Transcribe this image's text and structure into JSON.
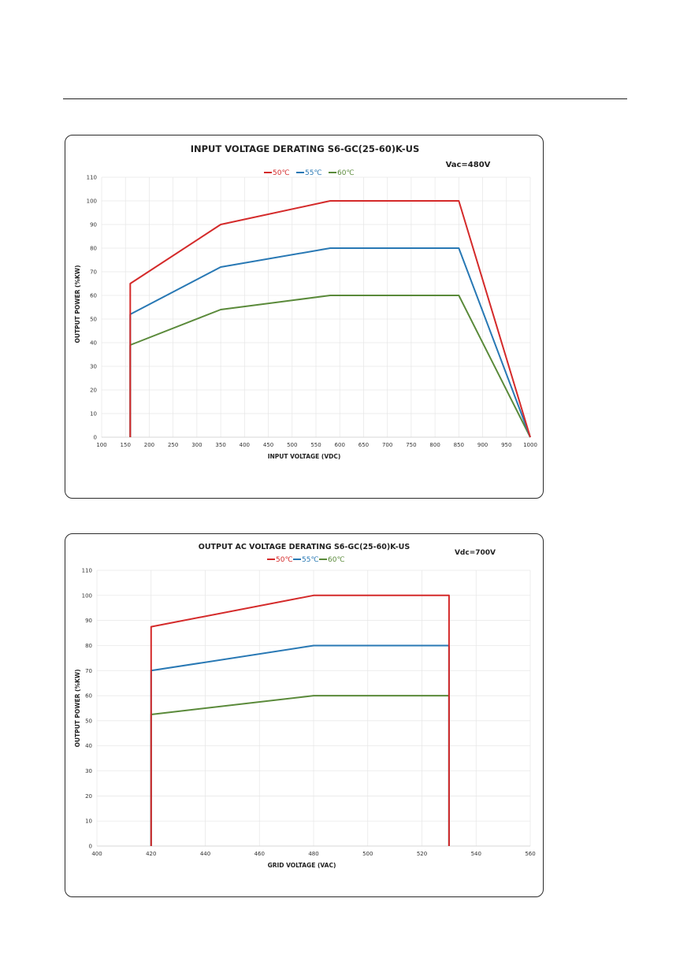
{
  "chart_data": [
    {
      "type": "line",
      "title": "INPUT VOLTAGE DERATING S6-GC(25-60)K-US",
      "annotation": "Vac=480V",
      "xlabel": "INPUT VOLTAGE (VDC)",
      "ylabel": "OUTPUT POWER (%KW)",
      "xlim": [
        100,
        1000
      ],
      "ylim": [
        0,
        110
      ],
      "xticks": [
        "100",
        "150",
        "200",
        "250",
        "300",
        "350",
        "400",
        "450",
        "500",
        "550",
        "600",
        "650",
        "700",
        "750",
        "800",
        "850",
        "900",
        "950",
        "1000"
      ],
      "yticks": [
        "0",
        "10",
        "20",
        "30",
        "40",
        "50",
        "60",
        "70",
        "80",
        "90",
        "100",
        "110"
      ],
      "grid": true,
      "legend_position": "top-center",
      "series": [
        {
          "name": "50℃",
          "color": "#d42a2a",
          "x": [
            160,
            160,
            350,
            580,
            850,
            1000
          ],
          "y": [
            0,
            65,
            90,
            100,
            100,
            0
          ]
        },
        {
          "name": "55℃",
          "color": "#2878b4",
          "x": [
            160,
            160,
            350,
            580,
            850,
            1000
          ],
          "y": [
            0,
            52,
            72,
            80,
            80,
            0
          ]
        },
        {
          "name": "60℃",
          "color": "#5a8a3a",
          "x": [
            160,
            160,
            350,
            580,
            850,
            1000
          ],
          "y": [
            0,
            39,
            54,
            60,
            60,
            0
          ]
        }
      ]
    },
    {
      "type": "line",
      "title": "OUTPUT AC VOLTAGE DERATING S6-GC(25-60)K-US",
      "annotation": "Vdc=700V",
      "xlabel": "GRID VOLTAGE (VAC)",
      "ylabel": "OUTPUT POWER (%KW)",
      "xlim": [
        400,
        560
      ],
      "ylim": [
        0,
        110
      ],
      "xticks": [
        "400",
        "420",
        "440",
        "460",
        "480",
        "500",
        "520",
        "540",
        "560"
      ],
      "yticks": [
        "0",
        "10",
        "20",
        "30",
        "40",
        "50",
        "60",
        "70",
        "80",
        "90",
        "100",
        "110"
      ],
      "grid": true,
      "legend_position": "top-center",
      "series": [
        {
          "name": "50℃",
          "color": "#d42a2a",
          "x": [
            420,
            420,
            480,
            530,
            530
          ],
          "y": [
            0,
            87.5,
            100,
            100,
            0
          ]
        },
        {
          "name": "55℃",
          "color": "#2878b4",
          "x": [
            420,
            420,
            480,
            530,
            530
          ],
          "y": [
            0,
            70,
            80,
            80,
            0
          ]
        },
        {
          "name": "60℃",
          "color": "#5a8a3a",
          "x": [
            420,
            420,
            480,
            530,
            530
          ],
          "y": [
            0,
            52.5,
            60,
            60,
            0
          ]
        }
      ]
    }
  ]
}
